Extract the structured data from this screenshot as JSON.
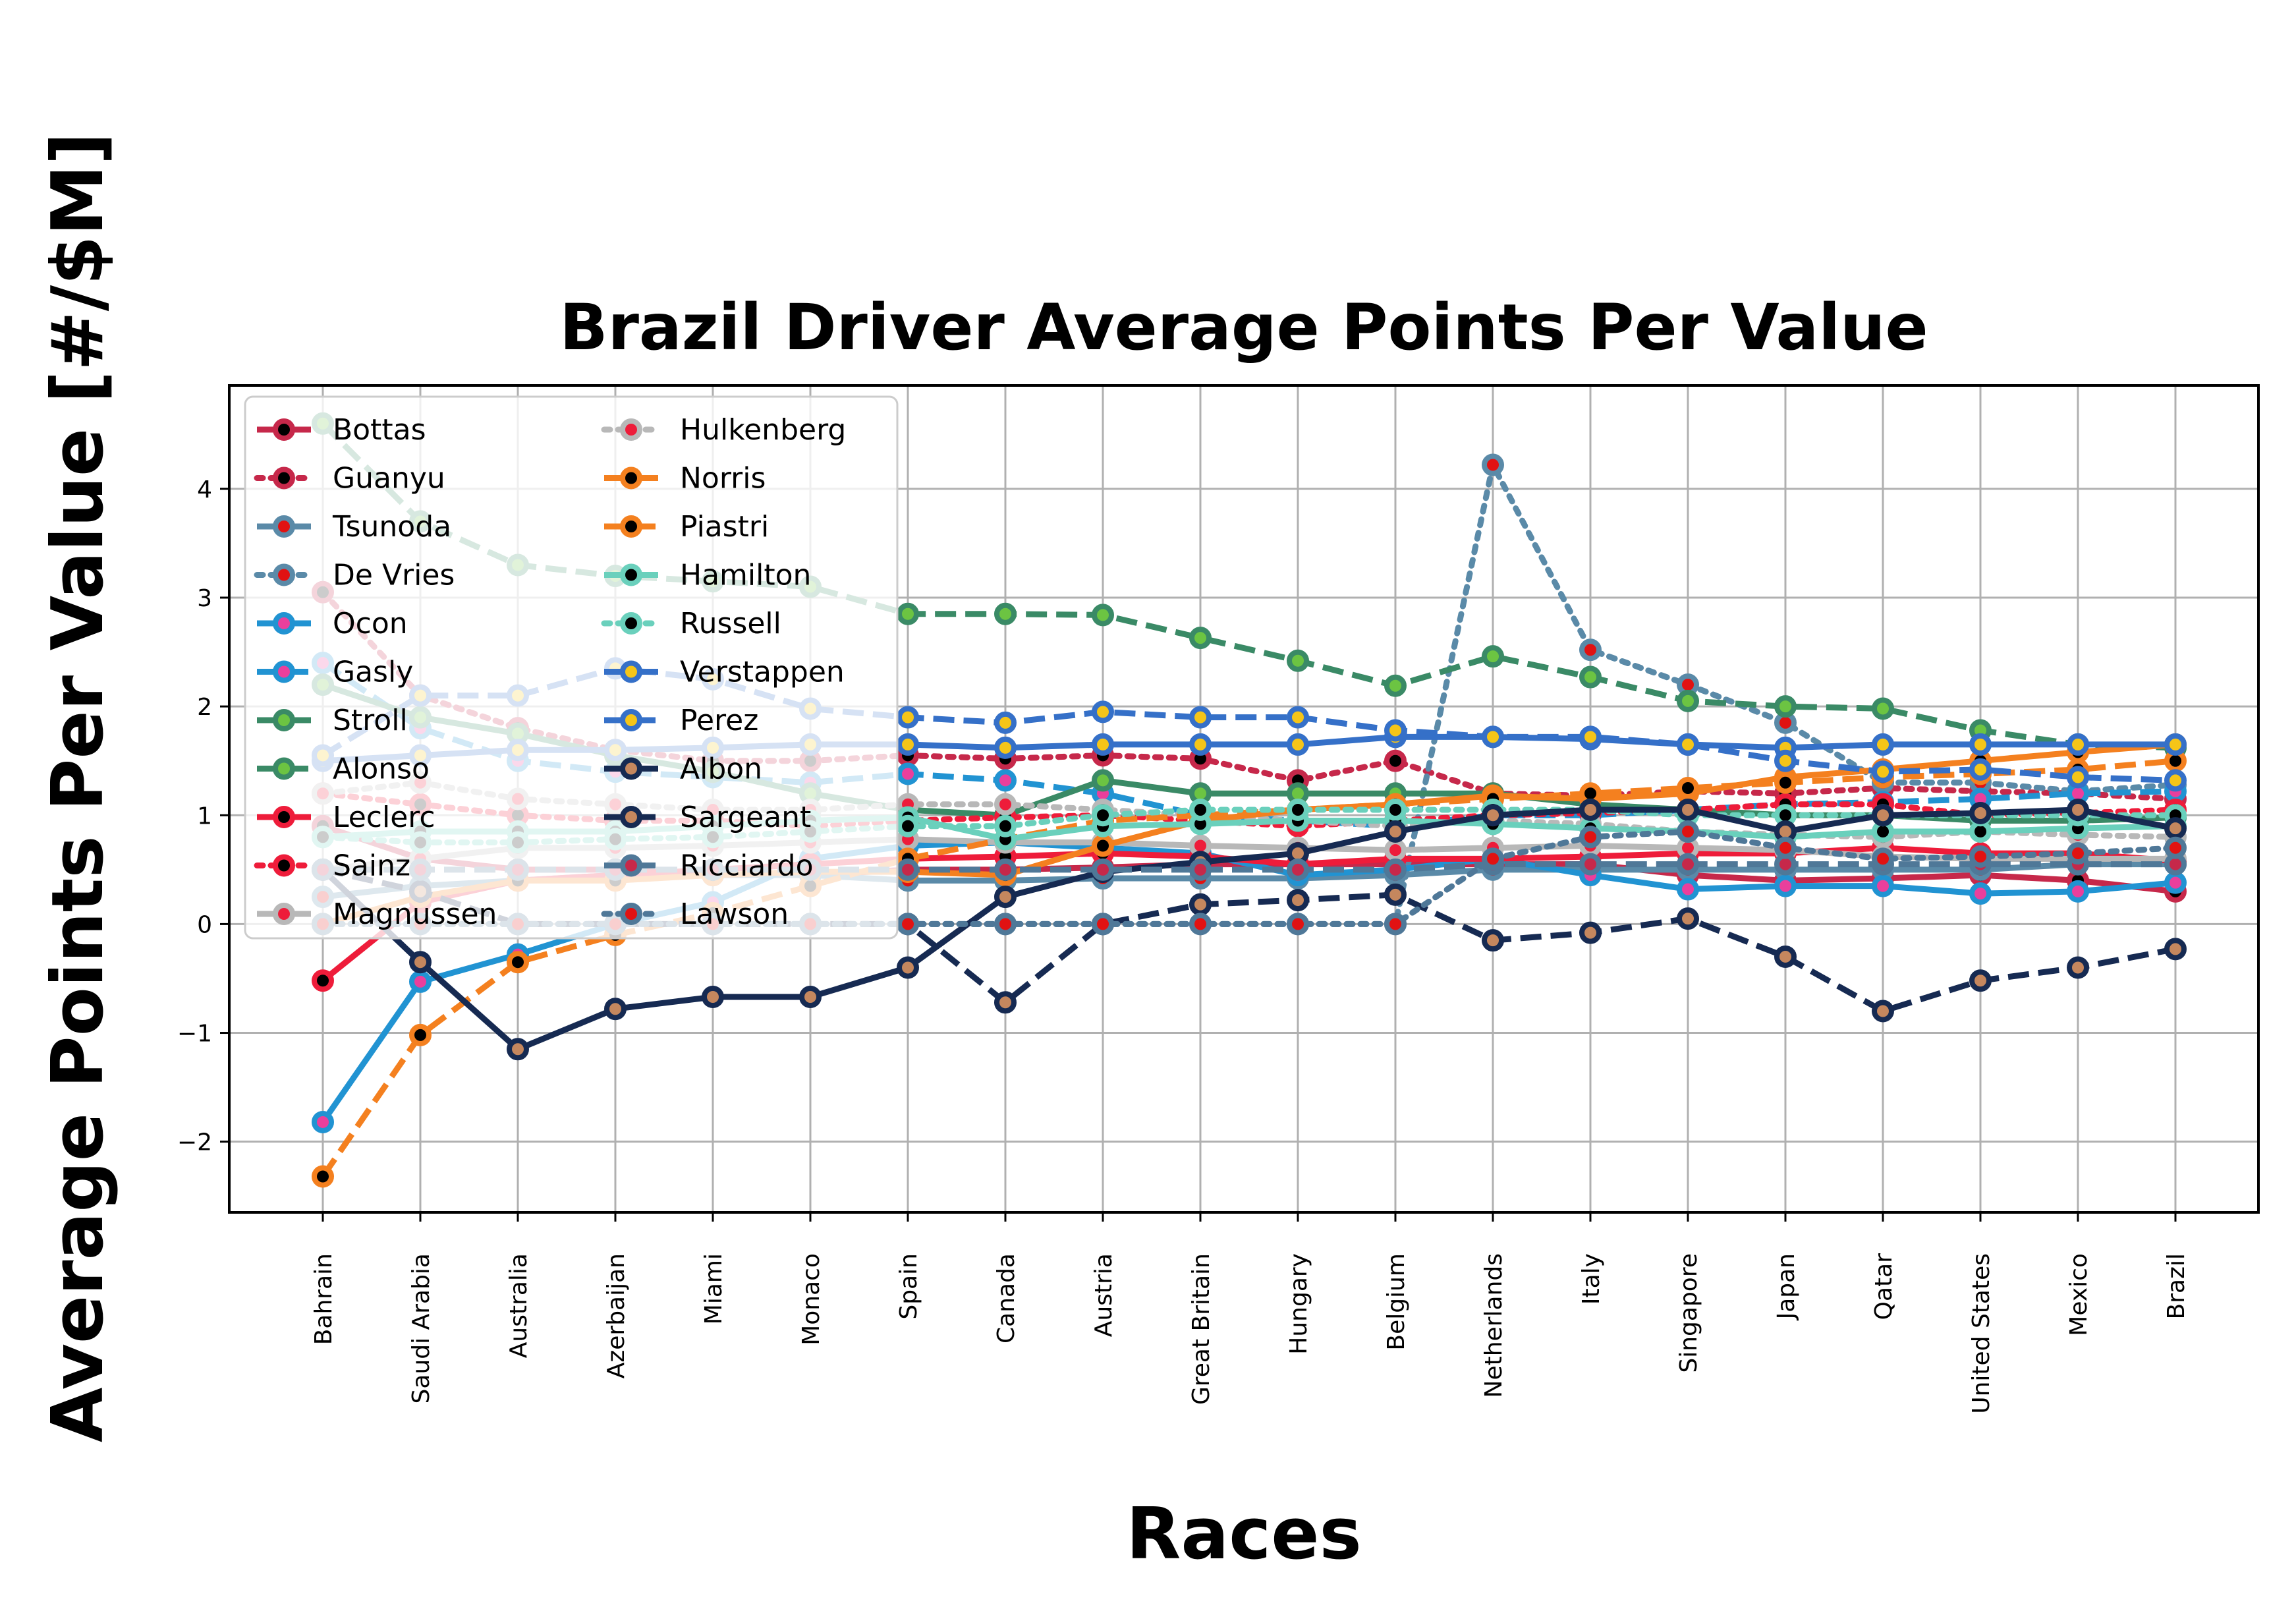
{
  "chart_data": {
    "type": "line",
    "title": "Brazil Driver Average Points Per Value",
    "xlabel": "Races",
    "ylabel": "Average Points Per Value [#/$M]",
    "categories": [
      "Bahrain",
      "Saudi Arabia",
      "Australia",
      "Azerbaijan",
      "Miami",
      "Monaco",
      "Spain",
      "Canada",
      "Austria",
      "Great Britain",
      "Hungary",
      "Belgium",
      "Netherlands",
      "Italy",
      "Singapore",
      "Japan",
      "Qatar",
      "United States",
      "Mexico",
      "Brazil"
    ],
    "ylim": [
      -2.65,
      4.95
    ],
    "yticks": [
      -2,
      -1,
      0,
      1,
      2,
      3,
      4
    ],
    "ytick_labels": [
      "−2",
      "−1",
      "0",
      "1",
      "2",
      "3",
      "4"
    ],
    "grid": true,
    "legend_position": "upper-left",
    "legend_columns": 2,
    "series": [
      {
        "name": "Bottas",
        "color": "#c6284a",
        "style": "solid",
        "marker_fill": "#000000",
        "marker_edge": "#c6284a",
        "values": [
          0.9,
          0.6,
          0.5,
          0.5,
          0.45,
          0.45,
          0.5,
          0.5,
          0.52,
          0.55,
          0.55,
          0.55,
          0.55,
          0.55,
          0.45,
          0.4,
          0.42,
          0.45,
          0.4,
          0.3
        ]
      },
      {
        "name": "Guanyu",
        "color": "#c6284a",
        "style": "dotted",
        "marker_fill": "#000000",
        "marker_edge": "#c6284a",
        "values": [
          3.05,
          2.1,
          1.8,
          1.6,
          1.5,
          1.5,
          1.55,
          1.52,
          1.55,
          1.52,
          1.32,
          1.5,
          1.2,
          1.18,
          1.22,
          1.2,
          1.25,
          1.22,
          1.2,
          1.15
        ]
      },
      {
        "name": "Tsunoda",
        "color": "#5a8aa8",
        "style": "solid",
        "marker_fill": "#e11212",
        "marker_edge": "#5a8aa8",
        "values": [
          0.25,
          0.35,
          0.4,
          0.45,
          0.45,
          0.45,
          0.4,
          0.4,
          0.42,
          0.42,
          0.42,
          0.45,
          0.5,
          0.5,
          0.5,
          0.5,
          0.5,
          0.5,
          0.55,
          0.55
        ]
      },
      {
        "name": "De Vries",
        "color": "#5a8aa8",
        "style": "dotted",
        "marker_fill": "#e11212",
        "marker_edge": "#5a8aa8",
        "values": [
          0.0,
          0.0,
          0.0,
          0.0,
          0.0,
          0.0,
          0.0,
          0.0,
          0.0,
          0.0,
          0.0,
          0.0,
          4.22,
          2.52,
          2.2,
          1.85,
          1.3,
          1.3,
          1.22,
          1.28
        ]
      },
      {
        "name": "Ocon",
        "color": "#2193d2",
        "style": "solid",
        "marker_fill": "#ea3f9c",
        "marker_edge": "#2193d2",
        "values": [
          -1.82,
          -0.53,
          -0.28,
          0.0,
          0.2,
          0.6,
          0.72,
          0.75,
          0.7,
          0.65,
          0.45,
          0.5,
          0.6,
          0.45,
          0.32,
          0.35,
          0.35,
          0.28,
          0.3,
          0.38
        ]
      },
      {
        "name": "Gasly",
        "color": "#2193d2",
        "style": "dashed",
        "marker_fill": "#ea3f9c",
        "marker_edge": "#2193d2",
        "values": [
          2.4,
          1.8,
          1.5,
          1.4,
          1.35,
          1.3,
          1.38,
          1.32,
          1.2,
          1.0,
          0.95,
          0.9,
          1.0,
          1.0,
          1.05,
          1.1,
          1.12,
          1.15,
          1.2,
          1.22
        ]
      },
      {
        "name": "Stroll",
        "color": "#3a8a66",
        "style": "solid",
        "marker_fill": "#6cc442",
        "marker_edge": "#3a8a66",
        "values": [
          2.2,
          1.9,
          1.75,
          1.55,
          1.4,
          1.2,
          1.05,
          1.0,
          1.32,
          1.2,
          1.2,
          1.2,
          1.2,
          1.1,
          1.05,
          1.0,
          1.0,
          0.95,
          0.95,
          0.98
        ]
      },
      {
        "name": "Alonso",
        "color": "#3a8a66",
        "style": "dashed",
        "marker_fill": "#6cc442",
        "marker_edge": "#3a8a66",
        "values": [
          4.6,
          3.7,
          3.3,
          3.2,
          3.15,
          3.1,
          2.85,
          2.85,
          2.84,
          2.63,
          2.42,
          2.19,
          2.46,
          2.27,
          2.05,
          2.0,
          1.98,
          1.78,
          1.65,
          1.62
        ]
      },
      {
        "name": "Leclerc",
        "color": "#ee1c3a",
        "style": "solid",
        "marker_fill": "#000000",
        "marker_edge": "#ee1c3a",
        "values": [
          -0.52,
          0.2,
          0.4,
          0.45,
          0.5,
          0.55,
          0.6,
          0.62,
          0.65,
          0.62,
          0.55,
          0.6,
          0.6,
          0.62,
          0.65,
          0.65,
          0.7,
          0.65,
          0.65,
          0.58
        ]
      },
      {
        "name": "Sainz",
        "color": "#ee1c3a",
        "style": "dotted",
        "marker_fill": "#000000",
        "marker_edge": "#ee1c3a",
        "values": [
          1.2,
          1.1,
          1.0,
          0.95,
          0.95,
          0.9,
          0.95,
          0.98,
          1.0,
          0.95,
          0.9,
          0.95,
          1.0,
          1.02,
          1.05,
          1.1,
          1.1,
          1.0,
          1.02,
          1.05
        ]
      },
      {
        "name": "Magnussen",
        "color": "#b8b8b8",
        "style": "solid",
        "marker_fill": "#ee1c3a",
        "marker_edge": "#b8b8b8",
        "values": [
          0.5,
          0.6,
          0.7,
          0.7,
          0.72,
          0.75,
          0.78,
          0.75,
          0.75,
          0.72,
          0.7,
          0.68,
          0.7,
          0.72,
          0.7,
          0.68,
          0.62,
          0.6,
          0.6,
          0.6
        ]
      },
      {
        "name": "Hulkenberg",
        "color": "#b8b8b8",
        "style": "dotted",
        "marker_fill": "#ee1c3a",
        "marker_edge": "#b8b8b8",
        "values": [
          1.2,
          1.3,
          1.15,
          1.1,
          1.05,
          1.05,
          1.1,
          1.1,
          1.05,
          1.0,
          0.95,
          0.9,
          0.95,
          0.92,
          0.85,
          0.82,
          0.8,
          0.85,
          0.82,
          0.8
        ]
      },
      {
        "name": "Norris",
        "color": "#f4801f",
        "style": "solid",
        "marker_fill": "#000000",
        "marker_edge": "#f4801f",
        "values": [
          0.0,
          0.25,
          0.4,
          0.4,
          0.45,
          0.48,
          0.48,
          0.45,
          0.72,
          0.95,
          1.05,
          1.1,
          1.18,
          1.15,
          1.2,
          1.35,
          1.42,
          1.5,
          1.58,
          1.65
        ]
      },
      {
        "name": "Piastri",
        "color": "#f4801f",
        "style": "dashed",
        "marker_fill": "#000000",
        "marker_edge": "#f4801f",
        "values": [
          -2.32,
          -1.02,
          -0.35,
          -0.1,
          0.1,
          0.35,
          0.6,
          0.78,
          0.95,
          1.0,
          1.05,
          1.1,
          1.15,
          1.2,
          1.25,
          1.3,
          1.35,
          1.38,
          1.42,
          1.5
        ]
      },
      {
        "name": "Hamilton",
        "color": "#6ad0bc",
        "style": "solid",
        "marker_fill": "#000000",
        "marker_edge": "#6ad0bc",
        "values": [
          0.8,
          0.85,
          0.85,
          0.85,
          0.9,
          0.95,
          0.98,
          0.78,
          0.9,
          0.92,
          0.95,
          0.95,
          0.92,
          0.88,
          0.85,
          0.8,
          0.85,
          0.85,
          0.88,
          0.9
        ]
      },
      {
        "name": "Russell",
        "color": "#6ad0bc",
        "style": "dotted",
        "marker_fill": "#000000",
        "marker_edge": "#6ad0bc",
        "values": [
          0.8,
          0.75,
          0.75,
          0.78,
          0.8,
          0.85,
          0.9,
          0.9,
          1.0,
          1.05,
          1.05,
          1.05,
          1.05,
          1.05,
          1.0,
          1.0,
          1.0,
          1.0,
          1.0,
          1.0
        ]
      },
      {
        "name": "Verstappen",
        "color": "#3570c8",
        "style": "solid",
        "marker_fill": "#f5c518",
        "marker_edge": "#3570c8",
        "values": [
          1.5,
          1.55,
          1.6,
          1.6,
          1.62,
          1.65,
          1.65,
          1.62,
          1.65,
          1.65,
          1.65,
          1.72,
          1.72,
          1.7,
          1.65,
          1.62,
          1.65,
          1.65,
          1.65,
          1.65
        ]
      },
      {
        "name": "Perez",
        "color": "#3570c8",
        "style": "dashed",
        "marker_fill": "#f5c518",
        "marker_edge": "#3570c8",
        "values": [
          1.55,
          2.1,
          2.1,
          2.35,
          2.25,
          1.98,
          1.9,
          1.85,
          1.95,
          1.9,
          1.9,
          1.78,
          1.72,
          1.72,
          1.65,
          1.5,
          1.4,
          1.42,
          1.35,
          1.32
        ]
      },
      {
        "name": "Albon",
        "color": "#162a52",
        "style": "solid",
        "marker_fill": "#c5875e",
        "marker_edge": "#162a52",
        "values": [
          0.5,
          -0.35,
          -1.15,
          -0.78,
          -0.67,
          -0.67,
          -0.4,
          0.25,
          0.48,
          0.57,
          0.65,
          0.85,
          1.0,
          1.05,
          1.05,
          0.85,
          1.0,
          1.02,
          1.05,
          0.88
        ]
      },
      {
        "name": "Sargeant",
        "color": "#162a52",
        "style": "dashed",
        "marker_fill": "#c5875e",
        "marker_edge": "#162a52",
        "values": [
          0.5,
          0.3,
          0.0,
          0.0,
          0.0,
          0.0,
          0.0,
          -0.72,
          0.0,
          0.18,
          0.22,
          0.27,
          -0.15,
          -0.08,
          0.05,
          -0.3,
          -0.8,
          -0.52,
          -0.4,
          -0.23
        ]
      },
      {
        "name": "Ricciardo",
        "color": "#4f7898",
        "style": "dashed",
        "marker_fill": "#c6284a",
        "marker_edge": "#4f7898",
        "values": [
          0.5,
          0.5,
          0.5,
          0.5,
          0.5,
          0.5,
          0.5,
          0.5,
          0.5,
          0.5,
          0.5,
          0.5,
          0.55,
          0.55,
          0.55,
          0.55,
          0.55,
          0.55,
          0.55,
          0.55
        ]
      },
      {
        "name": "Lawson",
        "color": "#4f7898",
        "style": "dotted",
        "marker_fill": "#e11212",
        "marker_edge": "#4f7898",
        "values": [
          0.0,
          0.0,
          0.0,
          0.0,
          0.0,
          0.0,
          0.0,
          0.0,
          0.0,
          0.0,
          0.0,
          0.0,
          0.6,
          0.8,
          0.85,
          0.7,
          0.6,
          0.62,
          0.65,
          0.7
        ]
      }
    ]
  }
}
